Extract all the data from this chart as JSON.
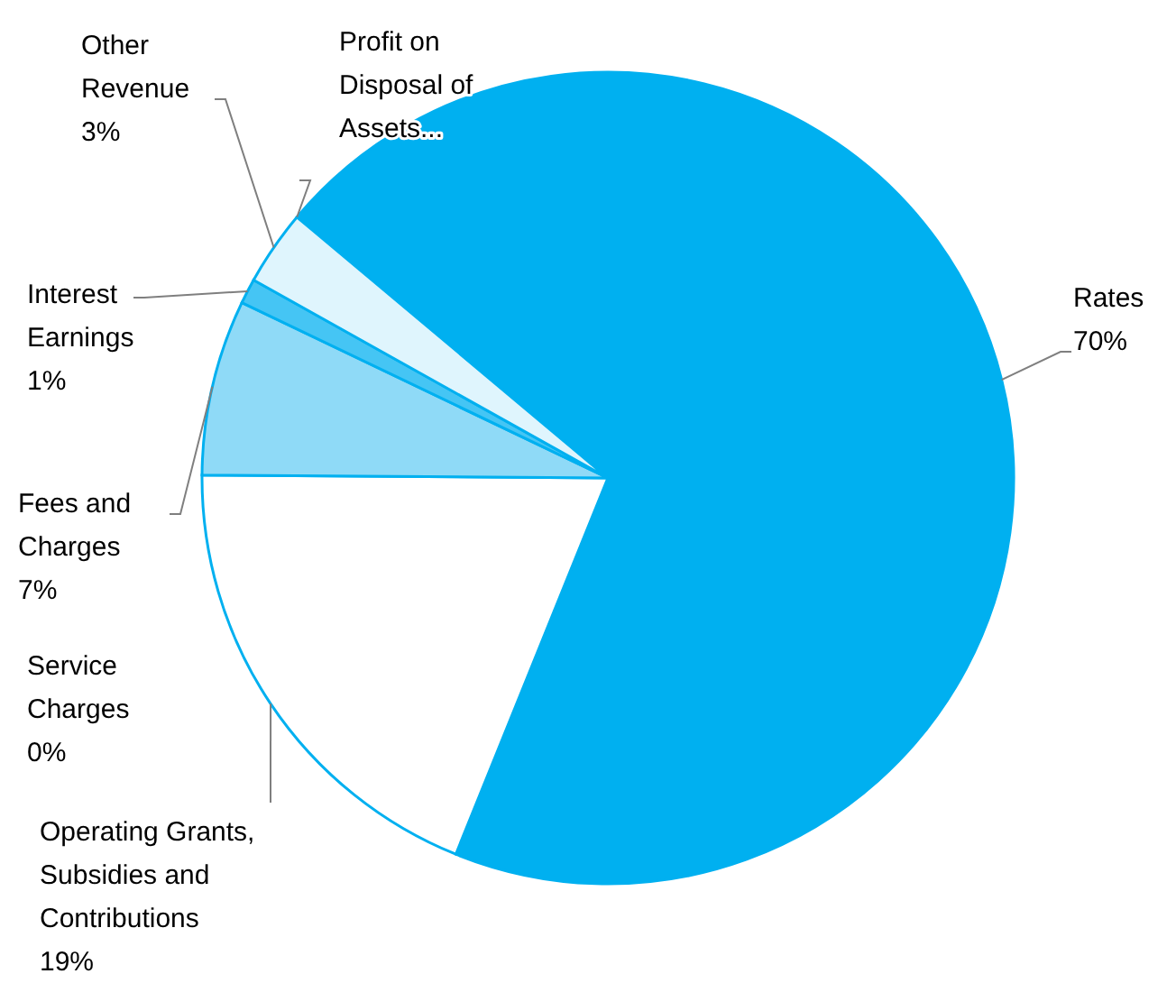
{
  "chart_data": {
    "type": "pie",
    "categories": [
      "Rates",
      "Operating Grants, Subsidies and Contributions",
      "Service Charges",
      "Fees and Charges",
      "Interest Earnings",
      "Other Revenue",
      "Profit on Disposal of Assets..."
    ],
    "values": [
      70,
      19,
      0,
      7,
      1,
      3,
      0
    ],
    "value_labels": [
      "70%",
      "19%",
      "0%",
      "7%",
      "1%",
      "3%",
      null
    ],
    "colors": [
      "#00b0f0",
      "#ffffff",
      null,
      "#8fdaf7",
      "#45c5f4",
      "#dff5fd",
      null
    ]
  }
}
